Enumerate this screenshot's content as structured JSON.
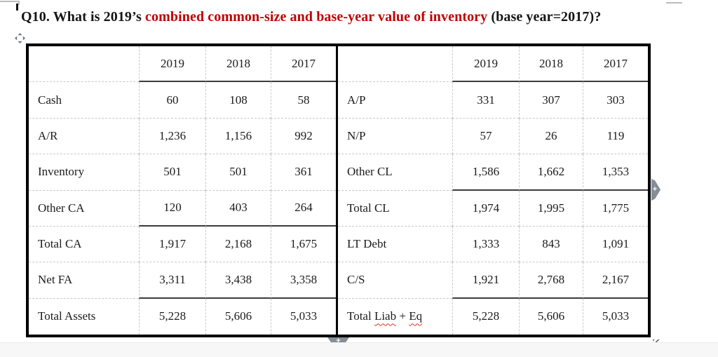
{
  "title": {
    "parts": [
      {
        "text": "Q10. What is 2019’s ",
        "style": "normal"
      },
      {
        "text": "combined common-size and base-year value of inventory",
        "style": "highlight"
      },
      {
        "text": " (base year=2017)?",
        "style": "normal"
      }
    ]
  },
  "colors": {
    "highlight_red": "#c00000",
    "grid_dashed": "#c9c9c9",
    "grid_solid": "#3c3c3c",
    "border_black": "#000000",
    "control_gray": "#858d96"
  },
  "table": {
    "years": [
      "2019",
      "2018",
      "2017"
    ],
    "left": {
      "rows": [
        {
          "label": "Cash",
          "values": [
            "60",
            "108",
            "58"
          ]
        },
        {
          "label": "A/R",
          "values": [
            "1,236",
            "1,156",
            "992"
          ]
        },
        {
          "label": "Inventory",
          "values": [
            "501",
            "501",
            "361"
          ]
        },
        {
          "label": "Other CA",
          "values": [
            "120",
            "403",
            "264"
          ]
        },
        {
          "label": "Total CA",
          "values": [
            "1,917",
            "2,168",
            "1,675"
          ],
          "total": true
        },
        {
          "label": "Net FA",
          "values": [
            "3,311",
            "3,438",
            "3,358"
          ]
        },
        {
          "label": "Total Assets",
          "values": [
            "5,228",
            "5,606",
            "5,033"
          ],
          "total": true
        }
      ]
    },
    "right": {
      "rows": [
        {
          "label": "A/P",
          "values": [
            "331",
            "307",
            "303"
          ]
        },
        {
          "label": "N/P",
          "values": [
            "57",
            "26",
            "119"
          ]
        },
        {
          "label": "Other CL",
          "values": [
            "1,586",
            "1,662",
            "1,353"
          ]
        },
        {
          "label": "Total CL",
          "values": [
            "1,974",
            "1,995",
            "1,775"
          ],
          "total": true
        },
        {
          "label": "LT Debt",
          "values": [
            "1,333",
            "843",
            "1,091"
          ]
        },
        {
          "label": "C/S",
          "values": [
            "1,921",
            "2,768",
            "2,167"
          ]
        },
        {
          "label": "Total Liab + Eq",
          "parts": [
            {
              "text": "Total "
            },
            {
              "text": "Liab",
              "misspelled": true
            },
            {
              "text": " + "
            },
            {
              "text": "Eq",
              "misspelled": true
            }
          ],
          "values": [
            "5,228",
            "5,606",
            "5,033"
          ],
          "total": true
        }
      ]
    }
  },
  "controls": {
    "insert_column_label": "+",
    "insert_row_label": "+"
  }
}
